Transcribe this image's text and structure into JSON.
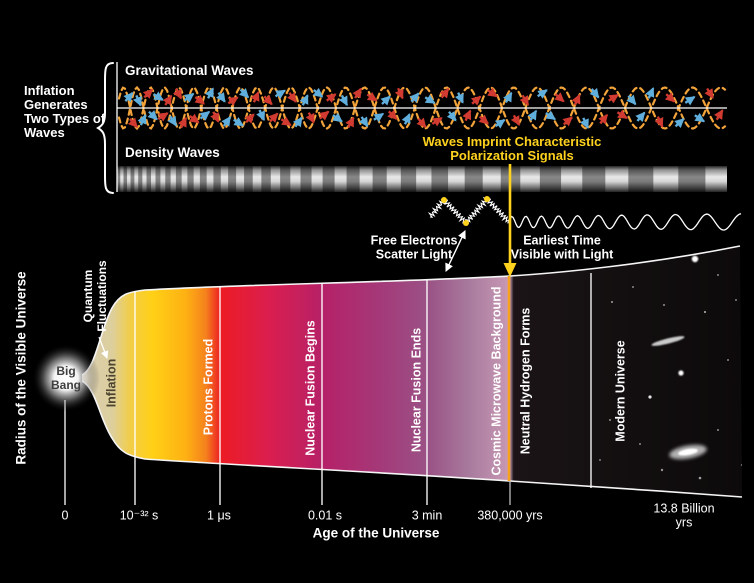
{
  "figure": {
    "left_axis_label": "Radius of the Visible Universe",
    "bottom_axis_label": "Age of the Universe",
    "inflation_caption": "Inflation\nGenerates\nTwo Types of\nWaves",
    "gravitational_waves_label": "Gravitational Waves",
    "density_waves_label": "Density Waves",
    "polarization_note": "Waves Imprint Characteristic\nPolarization Signals",
    "free_electrons_note": "Free Electrons\nScatter Light",
    "earliest_time_note": "Earliest Time\nVisible with Light",
    "quantum_fluctuations_label": "Quantum\nFluctuations",
    "big_bang_label": "Big\nBang",
    "timeline_ticks": [
      "0",
      "10⁻³² s",
      "1 μs",
      "0.01 s",
      "3 min",
      "380,000 yrs",
      "13.8 Billion yrs"
    ],
    "epochs": [
      "Inflation",
      "Protons Formed",
      "Nuclear Fusion Begins",
      "Nuclear Fusion Ends",
      "Cosmic Microwave Background",
      "Neutral Hydrogen Forms",
      "Modern Universe"
    ],
    "colors": {
      "background": "#000000",
      "wave_orange": "#F2A43B",
      "polarization_red": "#D03A30",
      "polarization_blue": "#5FAEDC",
      "highlight_yellow": "#FFD21E",
      "cone_yellow": "#FFD016",
      "cone_red": "#EC1C24",
      "cone_magenta": "#B52168",
      "cone_mauve": "#C596B2"
    }
  }
}
